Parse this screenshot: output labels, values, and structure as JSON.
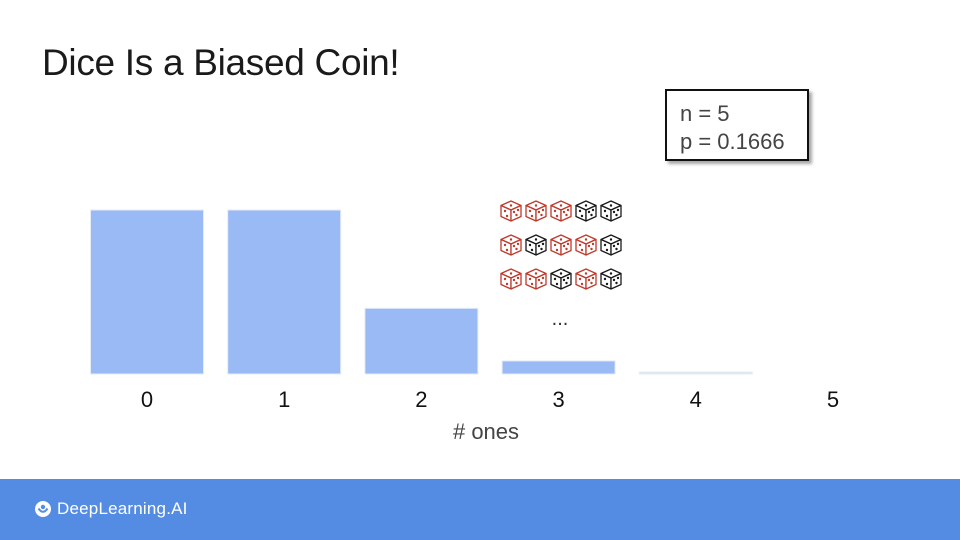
{
  "slide": {
    "title": "Dice Is a Biased Coin!",
    "params": {
      "n": "n = 5",
      "p": "p = 0.1666"
    }
  },
  "dice_illustration": {
    "rows": [
      [
        "red",
        "red",
        "red",
        "black",
        "black"
      ],
      [
        "red",
        "black",
        "red",
        "red",
        "black"
      ],
      [
        "red",
        "red",
        "black",
        "red",
        "black"
      ]
    ],
    "ellipsis": "..."
  },
  "chart_data": {
    "type": "bar",
    "categories": [
      "0",
      "1",
      "2",
      "3",
      "4",
      "5"
    ],
    "values": [
      0.402,
      0.402,
      0.161,
      0.032,
      0.003,
      0.0001
    ],
    "xlabel": "# ones",
    "ylabel": "",
    "ylim": [
      0,
      0.402
    ],
    "grid": false,
    "bar_color": "#99baf5"
  },
  "footer": {
    "brand": "DeepLearning.AI",
    "color": "#548ce3"
  }
}
